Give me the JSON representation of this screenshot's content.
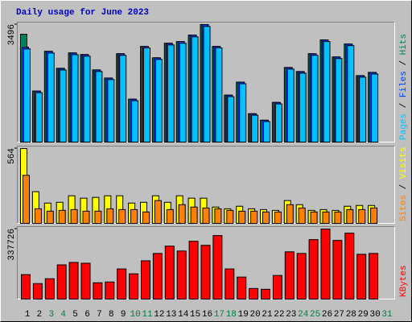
{
  "chart_data": {
    "type": "bar",
    "title": "Daily usage for June 2023",
    "legend_separator": " / ",
    "categories": [
      "1",
      "2",
      "3",
      "4",
      "5",
      "6",
      "7",
      "8",
      "9",
      "10",
      "11",
      "12",
      "13",
      "14",
      "15",
      "16",
      "17",
      "18",
      "19",
      "20",
      "21",
      "22",
      "23",
      "24",
      "25",
      "26",
      "27",
      "28",
      "29",
      "30",
      "31"
    ],
    "category_colors": [
      "#000000",
      "#000000",
      "#008040",
      "#008040",
      "#000000",
      "#000000",
      "#000000",
      "#000000",
      "#000000",
      "#008040",
      "#008040",
      "#000000",
      "#000000",
      "#000000",
      "#000000",
      "#000000",
      "#008040",
      "#008040",
      "#000000",
      "#000000",
      "#000000",
      "#000000",
      "#000000",
      "#008040",
      "#008040",
      "#000000",
      "#000000",
      "#000000",
      "#000000",
      "#000000",
      "#008040"
    ],
    "panels": [
      {
        "ylim": [
          0,
          3496
        ],
        "yticks": [
          3496
        ],
        "series": [
          {
            "name": "Hits",
            "color": "#00805c",
            "values": [
              3207,
              1519,
              2700,
              2194,
              2652,
              2604,
              2146,
              1905,
              2628,
              1278,
              2845,
              2507,
              2941,
              2990,
              3183,
              3496,
              2845,
              1398,
              1784,
              844,
              651,
              1181,
              2218,
              2098,
              2628,
              3038,
              2532,
              2917,
              1977,
              2073,
              null
            ]
          },
          {
            "name": "Files",
            "color": "#0040ff",
            "values": [
              2821,
              1519,
              2700,
              2194,
              2652,
              2604,
              2146,
              1905,
              2628,
              1278,
              2845,
              2507,
              2941,
              2990,
              3183,
              3496,
              2845,
              1398,
              1784,
              844,
              651,
              1181,
              2218,
              2098,
              2628,
              3038,
              2532,
              2917,
              1977,
              2073,
              null
            ]
          },
          {
            "name": "Pages",
            "color": "#00c0ff",
            "values": [
              2770,
              1470,
              2650,
              2145,
              2600,
              2555,
              2100,
              1860,
              2580,
              1230,
              2800,
              2460,
              2890,
              2940,
              3130,
              3440,
              2800,
              1350,
              1735,
              800,
              610,
              1135,
              2170,
              2050,
              2580,
              2990,
              2485,
              2870,
              1930,
              2025,
              null
            ]
          }
        ]
      },
      {
        "ylim": [
          0,
          564
        ],
        "yticks": [
          564
        ],
        "series": [
          {
            "name": "Visits",
            "color": "#ffff00",
            "values": [
              564,
              239,
              153,
              159,
              208,
              190,
              196,
              208,
              208,
              153,
              159,
              208,
              159,
              208,
              190,
              190,
              123,
              110,
              129,
              110,
              104,
              98,
              172,
              141,
              98,
              104,
              98,
              129,
              135,
              135,
              null
            ]
          },
          {
            "name": "Sites",
            "color": "#ff8000",
            "values": [
              362,
              110,
              92,
              98,
              104,
              92,
              92,
              110,
              104,
              104,
              86,
              172,
              104,
              141,
              123,
              116,
              110,
              98,
              92,
              92,
              86,
              86,
              141,
              116,
              86,
              86,
              86,
              104,
              104,
              116,
              null
            ]
          }
        ]
      },
      {
        "ylim": [
          0,
          337726
        ],
        "yticks": [
          337726
        ],
        "series": [
          {
            "name": "KBytes",
            "color": "#ff0000",
            "values": [
              117810,
              74613,
              98175,
              164934,
              176715,
              172788,
              78540,
              82467,
              145299,
              121737,
              184569,
              219912,
              255255,
              231693,
              278817,
              259182,
              306306,
              145299,
              106029,
              51051,
              47124,
              113883,
              227766,
              219912,
              286671,
              337726,
              282744,
              318087,
              215985,
              219912,
              null
            ]
          }
        ]
      }
    ]
  }
}
